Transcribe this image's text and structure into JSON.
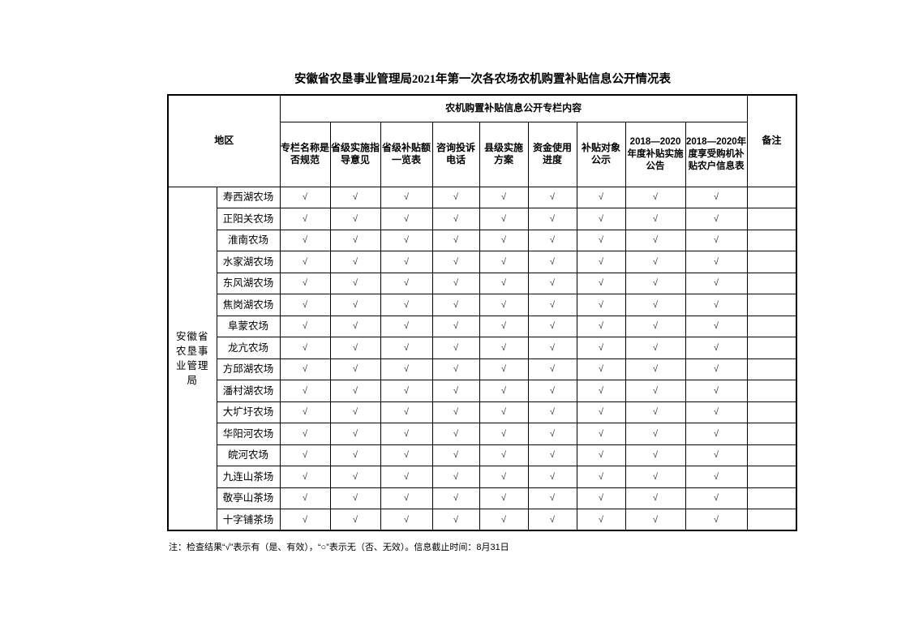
{
  "title": "安徽省农垦事业管理局2021年第一次各农场农机购置补贴信息公开情况表",
  "header": {
    "area": "地区",
    "group": "农机购置补贴信息公开专栏内容",
    "remark": "备注",
    "columns": [
      "专栏名称是否规范",
      "省级实施指导意见",
      "省级补贴额一览表",
      "咨询投诉电话",
      "县级实施方案",
      "资金使用进度",
      "补贴对象公示",
      "2018—2020年度补贴实施公告",
      "2018—2020年度享受购机补贴农户信息表"
    ]
  },
  "region": "安徽省农垦事业管理局",
  "rows": [
    {
      "farm": "寿西湖农场",
      "checks": [
        "√",
        "√",
        "√",
        "√",
        "√",
        "√",
        "√",
        "√",
        "√"
      ],
      "remark": ""
    },
    {
      "farm": "正阳关农场",
      "checks": [
        "√",
        "√",
        "√",
        "√",
        "√",
        "√",
        "√",
        "√",
        "√"
      ],
      "remark": ""
    },
    {
      "farm": "淮南农场",
      "checks": [
        "√",
        "√",
        "√",
        "√",
        "√",
        "√",
        "√",
        "√",
        "√"
      ],
      "remark": ""
    },
    {
      "farm": "水家湖农场",
      "checks": [
        "√",
        "√",
        "√",
        "√",
        "√",
        "√",
        "√",
        "√",
        "√"
      ],
      "remark": ""
    },
    {
      "farm": "东风湖农场",
      "checks": [
        "√",
        "√",
        "√",
        "√",
        "√",
        "√",
        "√",
        "√",
        "√"
      ],
      "remark": ""
    },
    {
      "farm": "焦岗湖农场",
      "checks": [
        "√",
        "√",
        "√",
        "√",
        "√",
        "√",
        "√",
        "√",
        "√"
      ],
      "remark": ""
    },
    {
      "farm": "阜蒙农场",
      "checks": [
        "√",
        "√",
        "√",
        "√",
        "√",
        "√",
        "√",
        "√",
        "√"
      ],
      "remark": ""
    },
    {
      "farm": "龙亢农场",
      "checks": [
        "√",
        "√",
        "√",
        "√",
        "√",
        "√",
        "√",
        "√",
        "√"
      ],
      "remark": ""
    },
    {
      "farm": "方邱湖农场",
      "checks": [
        "√",
        "√",
        "√",
        "√",
        "√",
        "√",
        "√",
        "√",
        "√"
      ],
      "remark": ""
    },
    {
      "farm": "潘村湖农场",
      "checks": [
        "√",
        "√",
        "√",
        "√",
        "√",
        "√",
        "√",
        "√",
        "√"
      ],
      "remark": ""
    },
    {
      "farm": "大圹圩农场",
      "checks": [
        "√",
        "√",
        "√",
        "√",
        "√",
        "√",
        "√",
        "√",
        "√"
      ],
      "remark": ""
    },
    {
      "farm": "华阳河农场",
      "checks": [
        "√",
        "√",
        "√",
        "√",
        "√",
        "√",
        "√",
        "√",
        "√"
      ],
      "remark": ""
    },
    {
      "farm": "皖河农场",
      "checks": [
        "√",
        "√",
        "√",
        "√",
        "√",
        "√",
        "√",
        "√",
        "√"
      ],
      "remark": ""
    },
    {
      "farm": "九连山茶场",
      "checks": [
        "√",
        "√",
        "√",
        "√",
        "√",
        "√",
        "√",
        "√",
        "√"
      ],
      "remark": ""
    },
    {
      "farm": "敬亭山茶场",
      "checks": [
        "√",
        "√",
        "√",
        "√",
        "√",
        "√",
        "√",
        "√",
        "√"
      ],
      "remark": ""
    },
    {
      "farm": "十字铺茶场",
      "checks": [
        "√",
        "√",
        "√",
        "√",
        "√",
        "√",
        "√",
        "√",
        "√"
      ],
      "remark": ""
    }
  ],
  "note": "注：检查结果“√”表示有（是、有效），“○”表示无（否、无效）。信息截止时间：8月31日"
}
